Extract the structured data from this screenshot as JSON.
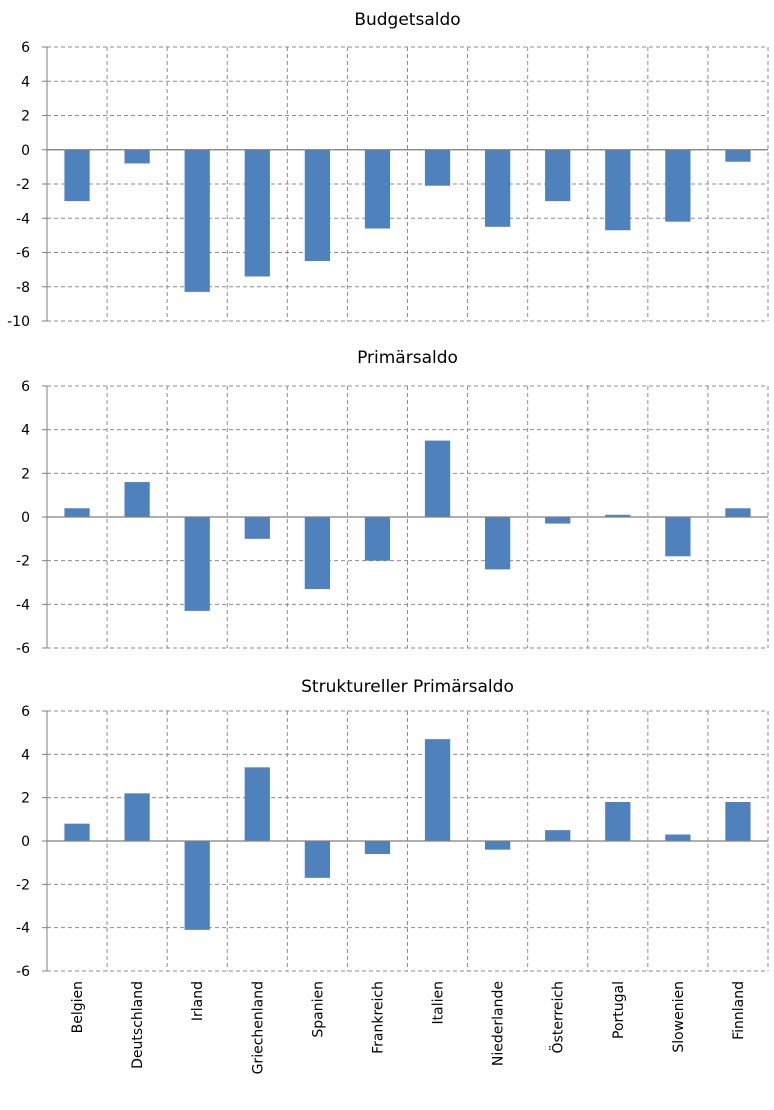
{
  "chart_data": [
    {
      "type": "bar",
      "title": "Budgetsaldo",
      "categories": [
        "Belgien",
        "Deutschland",
        "Irland",
        "Griechenland",
        "Spanien",
        "Frankreich",
        "Italien",
        "Niederlande",
        "Österreich",
        "Portugal",
        "Slowenien",
        "Finnland"
      ],
      "values": [
        -3.0,
        -0.8,
        -8.3,
        -7.4,
        -6.5,
        -4.6,
        -2.1,
        -4.5,
        -3.0,
        -4.7,
        -4.2,
        -0.7
      ],
      "ylim": [
        -10,
        6
      ],
      "yticks": [
        6,
        4,
        2,
        0,
        -2,
        -4,
        -6,
        -8,
        -10
      ],
      "grid": true,
      "color": "#4f81bd"
    },
    {
      "type": "bar",
      "title": "Primärsaldo",
      "categories": [
        "Belgien",
        "Deutschland",
        "Irland",
        "Griechenland",
        "Spanien",
        "Frankreich",
        "Italien",
        "Niederlande",
        "Österreich",
        "Portugal",
        "Slowenien",
        "Finnland"
      ],
      "values": [
        0.4,
        1.6,
        -4.3,
        -1.0,
        -3.3,
        -2.0,
        3.5,
        -2.4,
        -0.3,
        0.1,
        -1.8,
        0.4
      ],
      "ylim": [
        -6,
        6
      ],
      "yticks": [
        6,
        4,
        2,
        0,
        -2,
        -4,
        -6
      ],
      "grid": true,
      "color": "#4f81bd"
    },
    {
      "type": "bar",
      "title": "Struktureller Primärsaldo",
      "categories": [
        "Belgien",
        "Deutschland",
        "Irland",
        "Griechenland",
        "Spanien",
        "Frankreich",
        "Italien",
        "Niederlande",
        "Österreich",
        "Portugal",
        "Slowenien",
        "Finnland"
      ],
      "values": [
        0.8,
        2.2,
        -4.1,
        3.4,
        -1.7,
        -0.6,
        4.7,
        -0.4,
        0.5,
        1.8,
        0.3,
        1.8
      ],
      "ylim": [
        -6,
        6
      ],
      "yticks": [
        6,
        4,
        2,
        0,
        -2,
        -4,
        -6
      ],
      "grid": true,
      "color": "#4f81bd",
      "show_category_labels": true
    }
  ]
}
